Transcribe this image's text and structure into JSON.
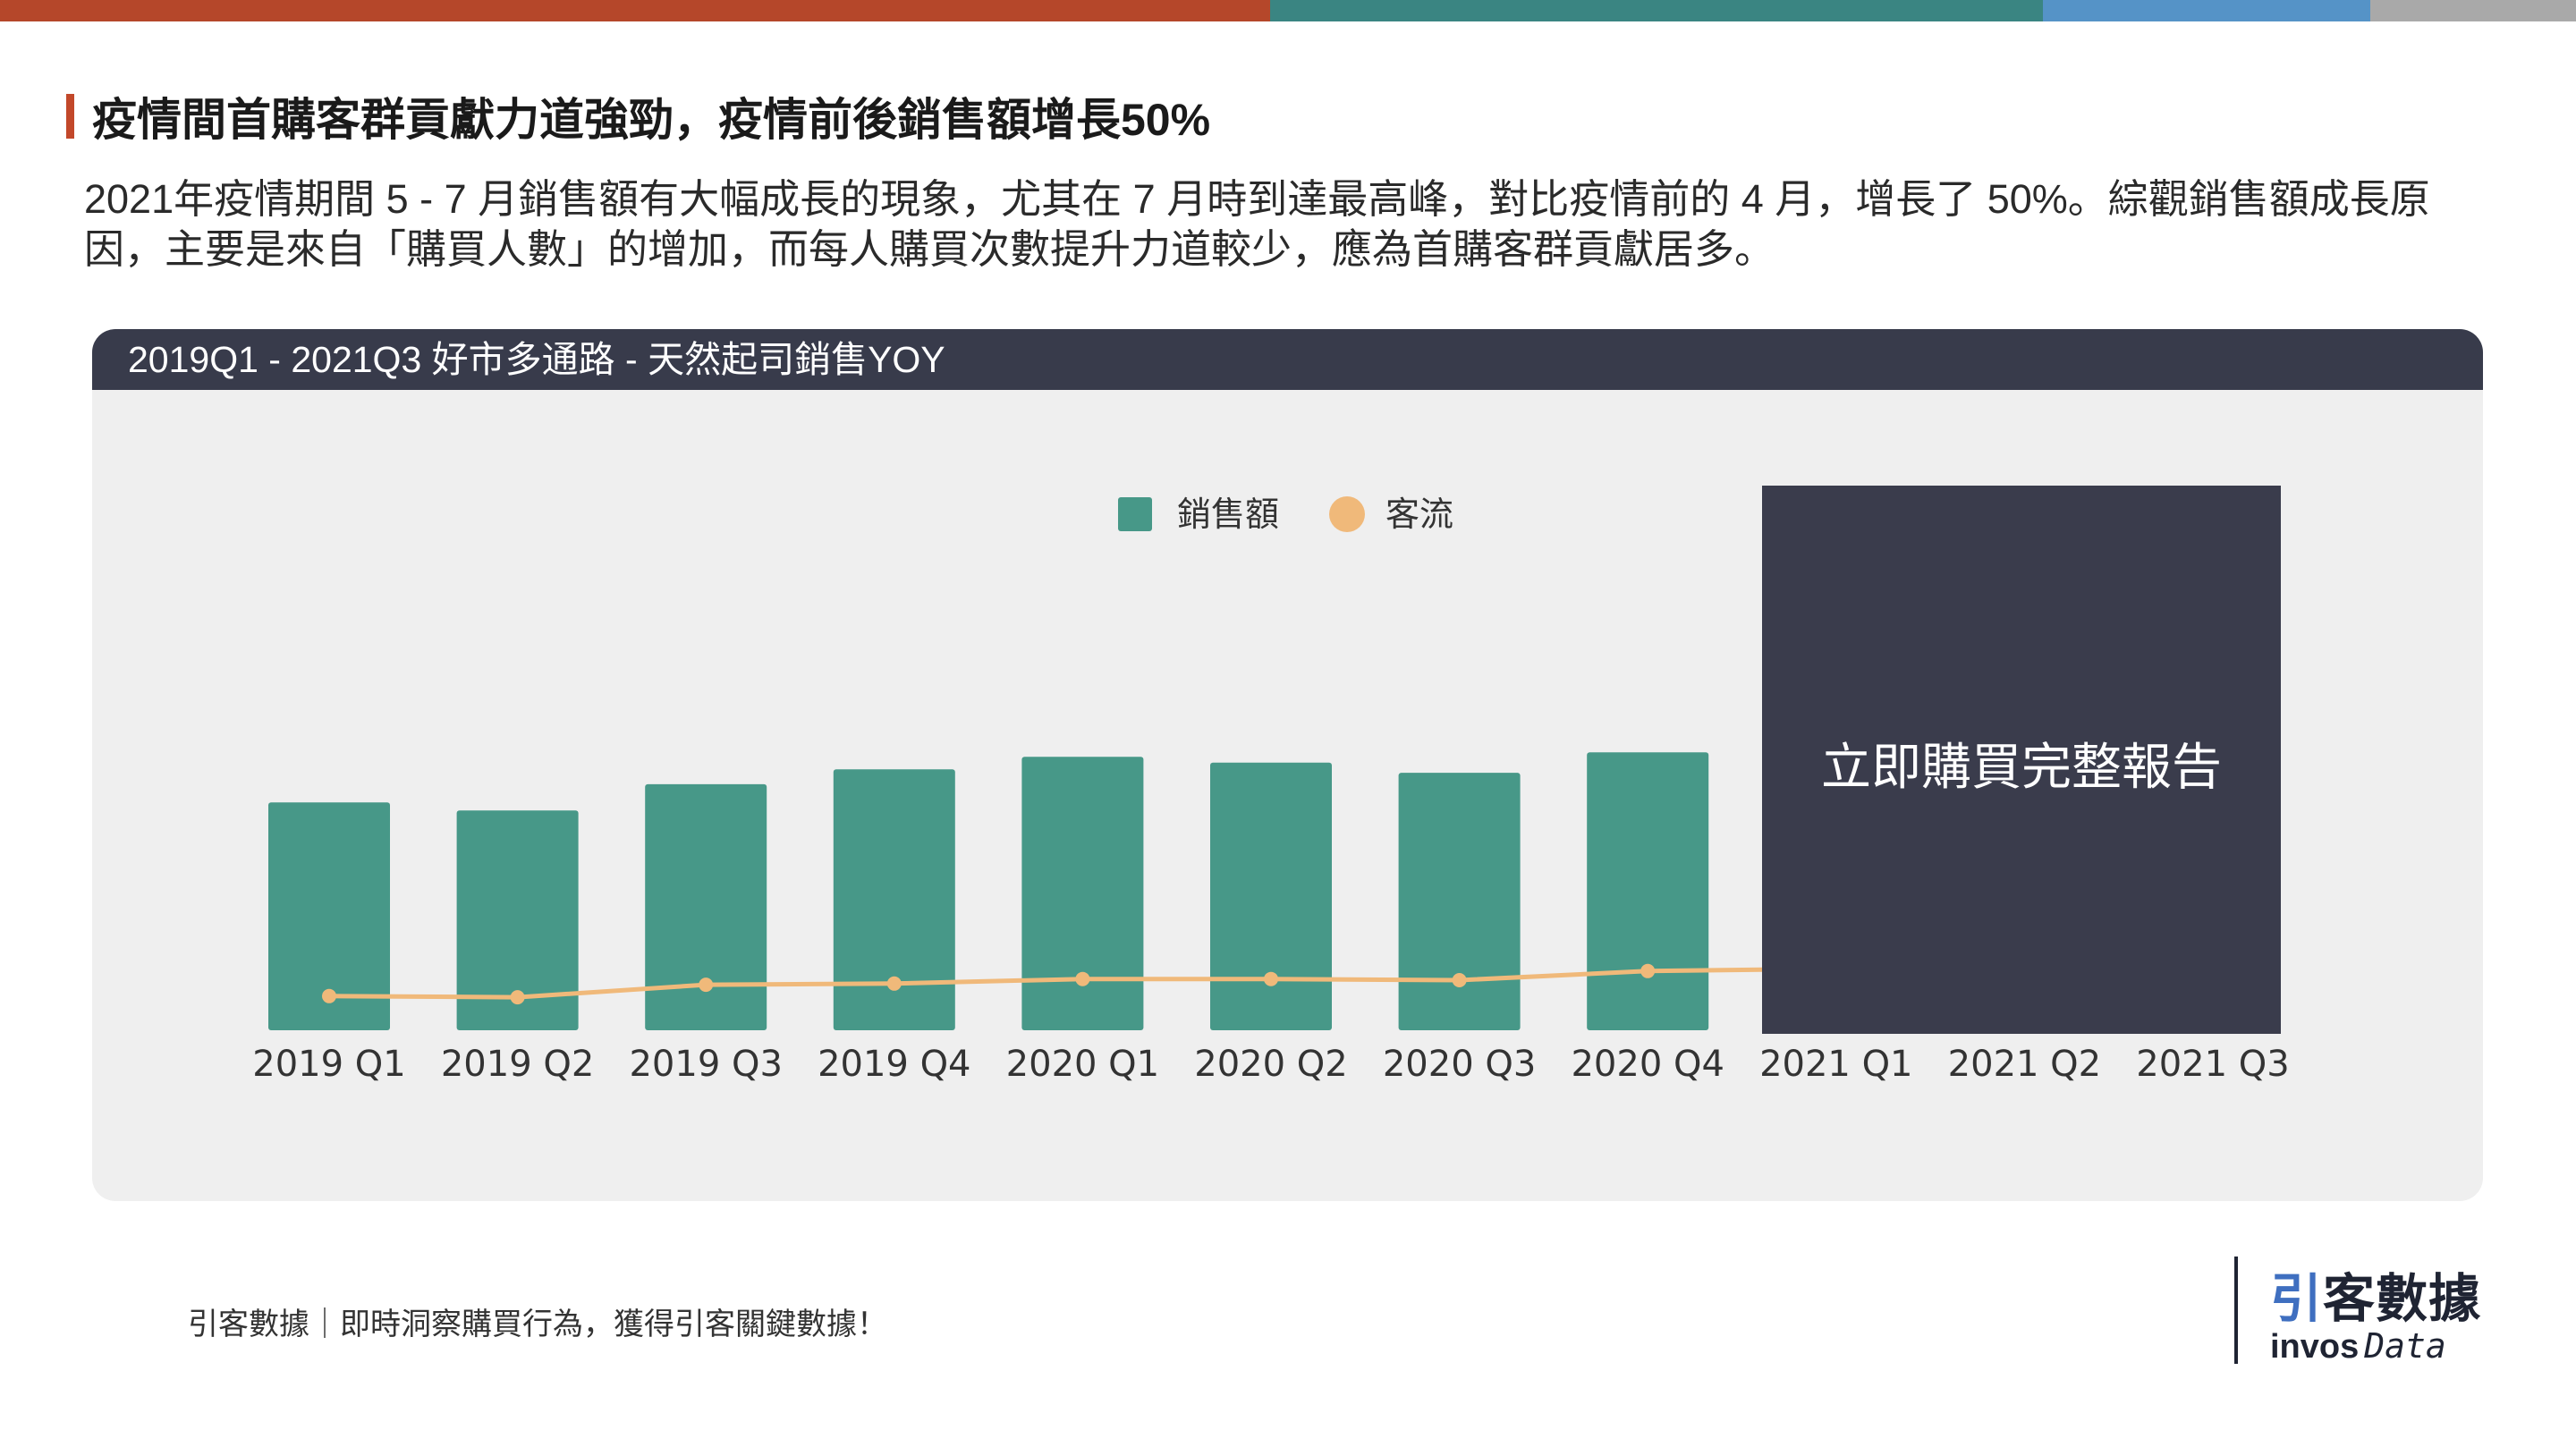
{
  "heading": {
    "title": "疫情間首購客群貢獻力道強勁，疫情前後銷售額增長50%"
  },
  "description": "2021年疫情期間 5 - 7 月銷售額有大幅成長的現象，尤其在 7 月時到達最高峰，對比疫情前的 4 月，增長了 50%。綜觀銷售額成長原因，主要是來自「購買人數」的增加，而每人購買次數提升力道較少，應為首購客群貢獻居多。",
  "chart_header": "2019Q1 - 2021Q3 好市多通路 - 天然起司銷售YOY",
  "cta": {
    "label": "立即購買完整報告"
  },
  "footer": {
    "text": "引客數據｜即時洞察購買行為，獲得引客關鍵數據！"
  },
  "logo": {
    "cn_part1": "引",
    "cn_part2": "客數據",
    "en_part1": "invos",
    "en_part2": "Data"
  },
  "colors": {
    "bar": "#479888",
    "line": "#f0b97a",
    "cta_bg": "#3a3c4c",
    "header_bg": "#383b4b",
    "accent": "#c2482a"
  },
  "chart_data": {
    "type": "bar",
    "categories": [
      "2019 Q1",
      "2019 Q2",
      "2019 Q3",
      "2019 Q4",
      "2020 Q1",
      "2020 Q2",
      "2020 Q3",
      "2020 Q4",
      "2021 Q1",
      "2021 Q2",
      "2021 Q3"
    ],
    "series": [
      {
        "name": "銷售額",
        "type": "bar",
        "values": [
          100,
          96.5,
          108,
          114.5,
          120,
          117.5,
          113,
          122,
          null,
          null,
          null
        ]
      },
      {
        "name": "客流",
        "type": "line",
        "values": [
          15,
          14.5,
          20,
          20.5,
          22.5,
          22.5,
          22,
          26,
          27,
          null,
          null
        ]
      }
    ],
    "title": "",
    "xlabel": "",
    "ylabel": "",
    "ylim": [
      0,
      190
    ],
    "legend_position": "top-center",
    "grid": false,
    "hidden_by_overlay": [
      "2021 Q1",
      "2021 Q2",
      "2021 Q3"
    ]
  }
}
